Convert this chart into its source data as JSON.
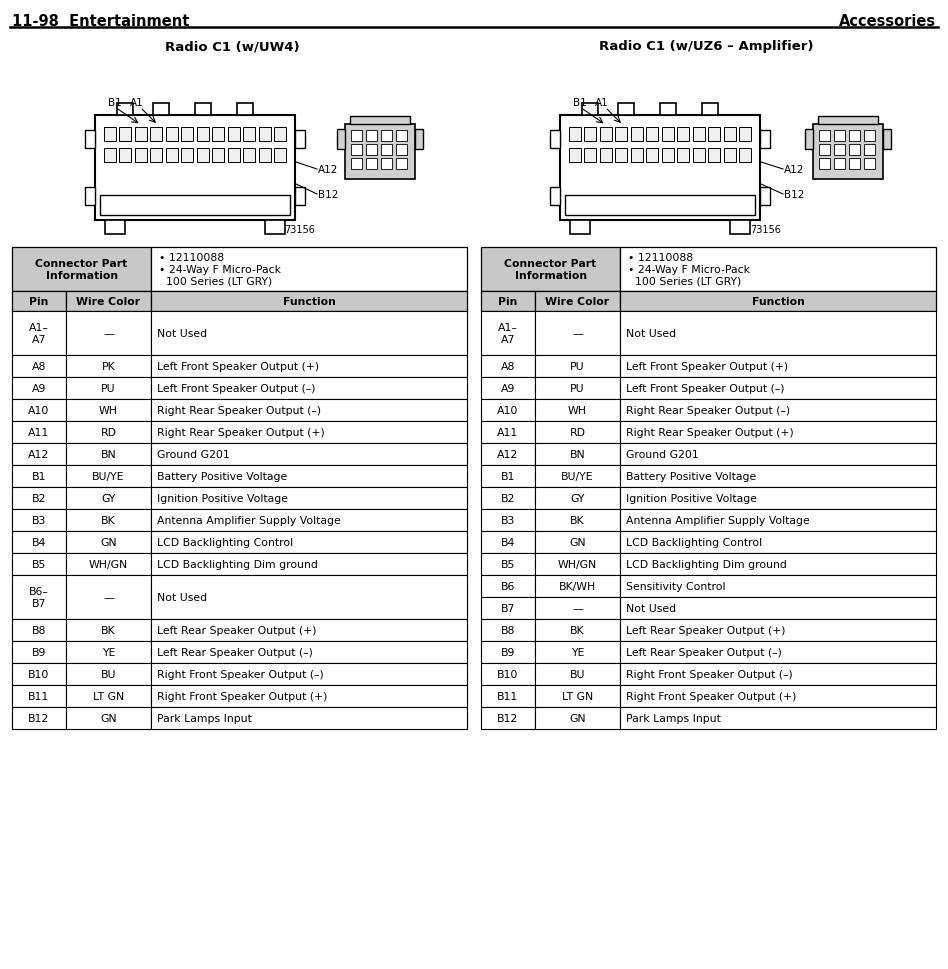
{
  "title_left": "11-98  Entertainment",
  "title_right": "Accessories",
  "subtitle_left": "Radio C1 (w/UW4)",
  "subtitle_right": "Radio C1 (w/UZ6 – Amplifier)",
  "left_table": [
    [
      "A1–\nA7",
      "—",
      "Not Used"
    ],
    [
      "A8",
      "PK",
      "Left Front Speaker Output (+)"
    ],
    [
      "A9",
      "PU",
      "Left Front Speaker Output (–)"
    ],
    [
      "A10",
      "WH",
      "Right Rear Speaker Output (–)"
    ],
    [
      "A11",
      "RD",
      "Right Rear Speaker Output (+)"
    ],
    [
      "A12",
      "BN",
      "Ground G201"
    ],
    [
      "B1",
      "BU/YE",
      "Battery Positive Voltage"
    ],
    [
      "B2",
      "GY",
      "Ignition Positive Voltage"
    ],
    [
      "B3",
      "BK",
      "Antenna Amplifier Supply Voltage"
    ],
    [
      "B4",
      "GN",
      "LCD Backlighting Control"
    ],
    [
      "B5",
      "WH/GN",
      "LCD Backlighting Dim ground"
    ],
    [
      "B6–\nB7",
      "—",
      "Not Used"
    ],
    [
      "B8",
      "BK",
      "Left Rear Speaker Output (+)"
    ],
    [
      "B9",
      "YE",
      "Left Rear Speaker Output (–)"
    ],
    [
      "B10",
      "BU",
      "Right Front Speaker Output (–)"
    ],
    [
      "B11",
      "LT GN",
      "Right Front Speaker Output (+)"
    ],
    [
      "B12",
      "GN",
      "Park Lamps Input"
    ]
  ],
  "right_table": [
    [
      "A1–\nA7",
      "—",
      "Not Used"
    ],
    [
      "A8",
      "PU",
      "Left Front Speaker Output (+)"
    ],
    [
      "A9",
      "PU",
      "Left Front Speaker Output (–)"
    ],
    [
      "A10",
      "WH",
      "Right Rear Speaker Output (–)"
    ],
    [
      "A11",
      "RD",
      "Right Rear Speaker Output (+)"
    ],
    [
      "A12",
      "BN",
      "Ground G201"
    ],
    [
      "B1",
      "BU/YE",
      "Battery Positive Voltage"
    ],
    [
      "B2",
      "GY",
      "Ignition Positive Voltage"
    ],
    [
      "B3",
      "BK",
      "Antenna Amplifier Supply Voltage"
    ],
    [
      "B4",
      "GN",
      "LCD Backlighting Control"
    ],
    [
      "B5",
      "WH/GN",
      "LCD Backlighting Dim ground"
    ],
    [
      "B6",
      "BK/WH",
      "Sensitivity Control"
    ],
    [
      "B7",
      "—",
      "Not Used"
    ],
    [
      "B8",
      "BK",
      "Left Rear Speaker Output (+)"
    ],
    [
      "B9",
      "YE",
      "Left Rear Speaker Output (–)"
    ],
    [
      "B10",
      "BU",
      "Right Front Speaker Output (–)"
    ],
    [
      "B11",
      "LT GN",
      "Right Front Speaker Output (+)"
    ],
    [
      "B12",
      "GN",
      "Park Lamps Input"
    ]
  ],
  "bg_color": "#ffffff",
  "header_bg": "#c8c8c8",
  "font_size_title": 10.5,
  "font_size_subtitle": 9.5,
  "font_size_table": 7.8
}
